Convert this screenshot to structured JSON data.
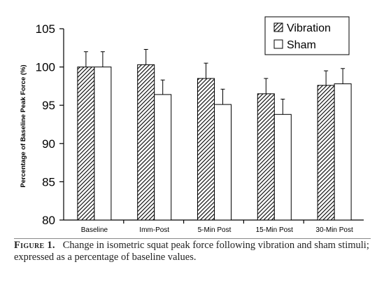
{
  "chart_data": {
    "type": "bar",
    "ylabel": "Percentage of Baseline Peak Force (%)",
    "xlabel": "",
    "ylim": [
      80,
      105
    ],
    "yticks": [
      80,
      85,
      90,
      95,
      100,
      105
    ],
    "categories": [
      "Baseline",
      "Imm-Post",
      "5-Min Post",
      "15-Min Post",
      "30-Min Post"
    ],
    "series": [
      {
        "name": "Vibration",
        "pattern": "diagonal-hatch",
        "values": [
          100.0,
          100.3,
          98.5,
          96.5,
          97.6
        ],
        "error": [
          2.0,
          2.0,
          2.0,
          2.0,
          1.9
        ]
      },
      {
        "name": "Sham",
        "pattern": "solid-white",
        "values": [
          100.0,
          96.4,
          95.1,
          93.8,
          97.8
        ],
        "error": [
          2.0,
          1.9,
          2.0,
          2.0,
          2.0
        ]
      }
    ],
    "legend_position": "top-right",
    "grid": false
  },
  "caption": {
    "label": "Figure 1.",
    "text": "Change in isometric squat peak force following vibration and sham stimuli; expressed as a percentage of baseline values."
  }
}
